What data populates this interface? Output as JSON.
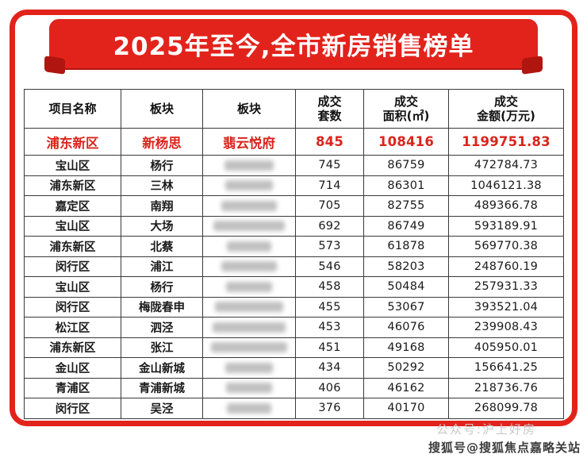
{
  "colors": {
    "accent_red": "#e2231c",
    "dark_red": "#b01510",
    "highlight_text": "#d9251c"
  },
  "banner": {
    "title": "2025年至今,全市新房销售榜单"
  },
  "chart_data": {
    "type": "table",
    "title": "2025年至今,全市新房销售榜单",
    "columns": [
      "项目名称",
      "板块",
      "板块",
      "成交套数",
      "成交面积(㎡)",
      "成交金额(万元)"
    ],
    "columns_lines": [
      [
        "项目名称"
      ],
      [
        "板块"
      ],
      [
        "板块"
      ],
      [
        "成交",
        "套数"
      ],
      [
        "成交",
        "面积(㎡)"
      ],
      [
        "成交",
        "金额(万元)"
      ]
    ],
    "highlight_index": 0,
    "rows": [
      {
        "cells": [
          "浦东新区",
          "新杨思",
          "翡云悦府",
          "845",
          "108416",
          "1199751.83"
        ],
        "blurred_project": false
      },
      {
        "cells": [
          "宝山区",
          "杨行",
          "",
          "745",
          "86759",
          "472784.73"
        ],
        "blurred_project": true,
        "blur_w": 62
      },
      {
        "cells": [
          "浦东新区",
          "三林",
          "",
          "714",
          "86301",
          "1046121.38"
        ],
        "blurred_project": true,
        "blur_w": 60
      },
      {
        "cells": [
          "嘉定区",
          "南翔",
          "",
          "705",
          "82755",
          "489366.78"
        ],
        "blurred_project": true,
        "blur_w": 70
      },
      {
        "cells": [
          "宝山区",
          "大场",
          "",
          "692",
          "86749",
          "593189.91"
        ],
        "blurred_project": true,
        "blur_w": 90
      },
      {
        "cells": [
          "浦东新区",
          "北蔡",
          "",
          "573",
          "61878",
          "569770.38"
        ],
        "blurred_project": true,
        "blur_w": 56
      },
      {
        "cells": [
          "闵行区",
          "浦江",
          "",
          "546",
          "58203",
          "248760.19"
        ],
        "blurred_project": true,
        "blur_w": 70
      },
      {
        "cells": [
          "宝山区",
          "杨行",
          "",
          "458",
          "50484",
          "257931.33"
        ],
        "blurred_project": true,
        "blur_w": 58
      },
      {
        "cells": [
          "闵行区",
          "梅陇春申",
          "",
          "455",
          "53067",
          "393521.04"
        ],
        "blurred_project": true,
        "blur_w": 86
      },
      {
        "cells": [
          "松江区",
          "泗泾",
          "",
          "453",
          "46076",
          "239908.43"
        ],
        "blurred_project": true,
        "blur_w": 92
      },
      {
        "cells": [
          "浦东新区",
          "张江",
          "",
          "451",
          "49168",
          "405950.01"
        ],
        "blurred_project": true,
        "blur_w": 96
      },
      {
        "cells": [
          "金山区",
          "金山新城",
          "",
          "434",
          "50292",
          "156641.25"
        ],
        "blurred_project": true,
        "blur_w": 60
      },
      {
        "cells": [
          "青浦区",
          "青浦新城",
          "",
          "406",
          "46162",
          "218736.76"
        ],
        "blurred_project": true,
        "blur_w": 58
      },
      {
        "cells": [
          "闵行区",
          "吴泾",
          "",
          "376",
          "40170",
          "268099.78"
        ],
        "blurred_project": true,
        "blur_w": 56
      }
    ]
  },
  "footer": {
    "watermark": "公众号:沪上好房",
    "credit": "搜狐号@搜狐焦点嘉略关站"
  }
}
